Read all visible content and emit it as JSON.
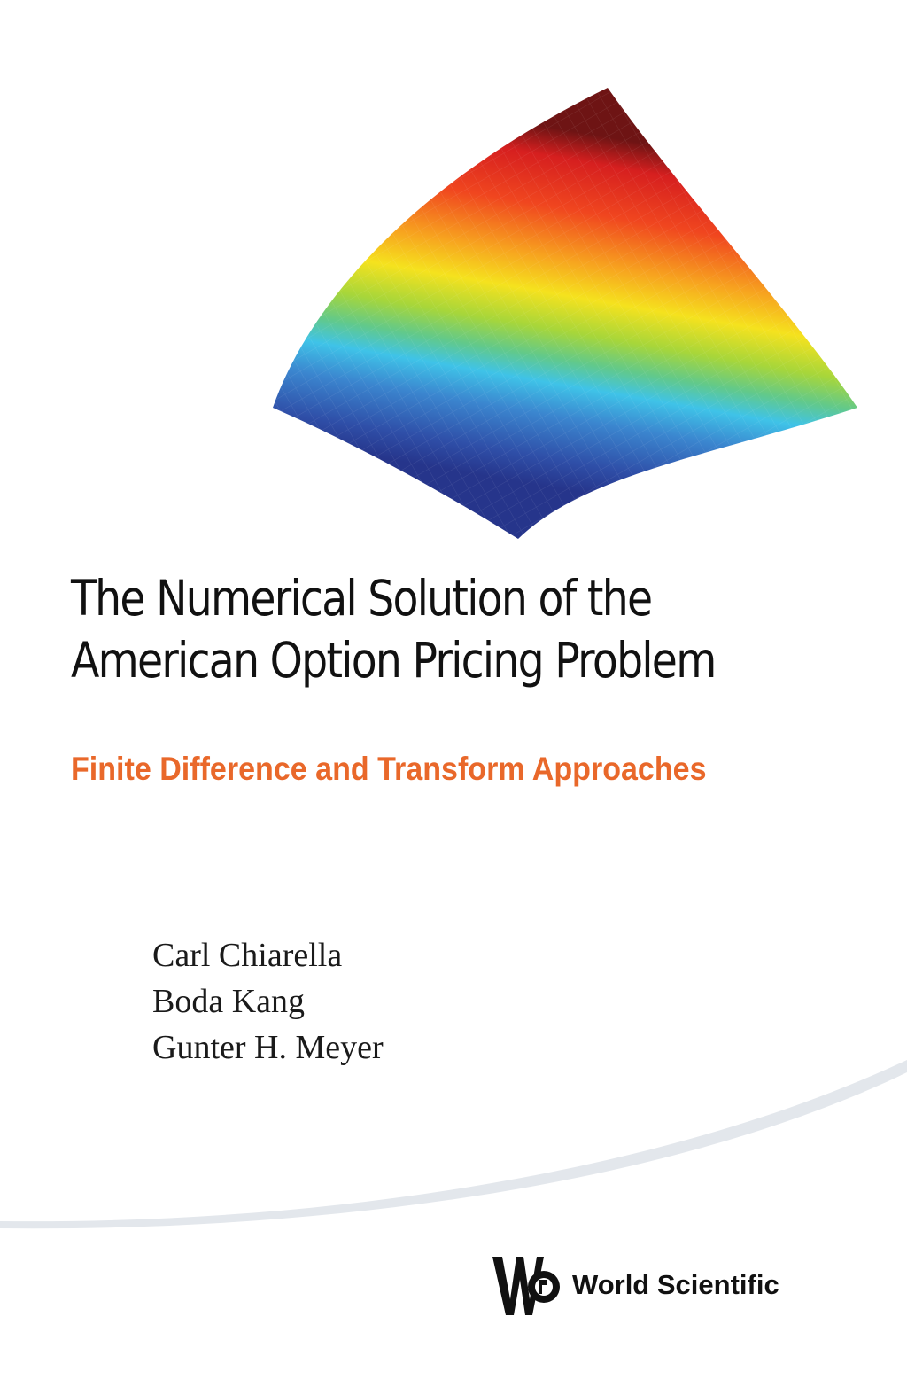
{
  "cover": {
    "title_lines": [
      "The Numerical Solution of the",
      "American Option Pricing Problem"
    ],
    "subtitle": "Finite Difference and Transform Approaches",
    "authors": [
      "Carl Chiarella",
      "Boda Kang",
      "Gunter H. Meyer"
    ],
    "publisher": "World Scientific"
  },
  "colors": {
    "subtitle": "#e9682a",
    "surface_gradient": [
      "#7a1616",
      "#e8201e",
      "#f57a20",
      "#f8e41c",
      "#8ed23f",
      "#3cc6e6",
      "#3b75c4",
      "#283e94"
    ],
    "swoosh": "#e6eaef"
  },
  "icons": {
    "surface_plot": "3d-surface-plot-icon",
    "publisher_logo": "world-scientific-logo-icon",
    "decorative_swoosh": "swoosh-icon"
  }
}
